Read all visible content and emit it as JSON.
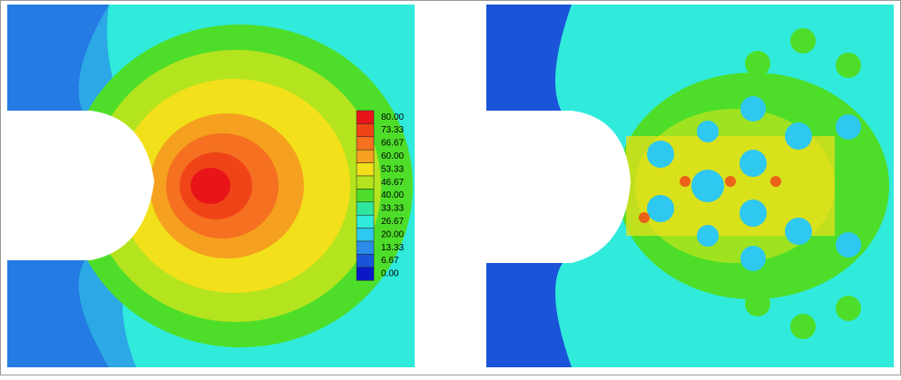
{
  "legend": {
    "labels": [
      "80.00",
      "73.33",
      "66.67",
      "60.00",
      "53.33",
      "46.67",
      "40.00",
      "33.33",
      "26.67",
      "20.00",
      "13.33",
      "6.67",
      "0.00"
    ],
    "colors": [
      "#e8141a",
      "#f04418",
      "#f57020",
      "#f5a01e",
      "#f2e01a",
      "#b4e41e",
      "#4ede2a",
      "#2ee69e",
      "#30eadc",
      "#2ec8f0",
      "#2a8ce8",
      "#1a54d8",
      "#0a18c8"
    ]
  }
}
